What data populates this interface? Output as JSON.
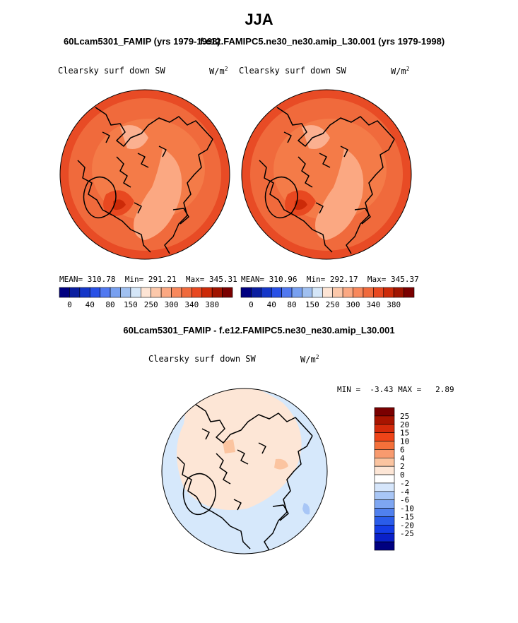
{
  "figure": {
    "title": "JJA",
    "panel_left_title": "60Lcam5301_FAMIP (yrs 1979-1998)",
    "panel_right_title": "f.e12.FAMIPC5.ne30_ne30.amip_L30.001 (yrs 1979-1998)",
    "diff_title": "60Lcam5301_FAMIP - f.e12.FAMIPC5.ne30_ne30.amip_L30.001"
  },
  "panels": [
    {
      "variable": "Clearsky surf down SW",
      "units_base": "W/m",
      "units_exp": "2",
      "mean_label": "MEAN=",
      "mean": "310.78",
      "min_label": "Min=",
      "min": "291.21",
      "max_label": "Max=",
      "max": "345.31"
    },
    {
      "variable": "Clearsky surf down SW",
      "units_base": "W/m",
      "units_exp": "2",
      "mean_label": "MEAN=",
      "mean": "310.96",
      "min_label": "Min=",
      "min": "292.17",
      "max_label": "Max=",
      "max": "345.37"
    }
  ],
  "diff_panel": {
    "variable": "Clearsky surf down SW",
    "units_base": "W/m",
    "units_exp": "2",
    "min_label": "MIN =",
    "min": "-3.43",
    "max_label": "MAX =",
    "max": "2.89"
  },
  "colorbar_main": {
    "colors": [
      "#000080",
      "#0a1ea0",
      "#1436c8",
      "#2850e6",
      "#5078f0",
      "#78a0f0",
      "#a0c0f0",
      "#d4e6f8",
      "#fde4d4",
      "#fcc8aa",
      "#fba882",
      "#f8885c",
      "#f06a3c",
      "#e84820",
      "#cc2a08",
      "#a01400",
      "#7a0000"
    ],
    "ticks": [
      "0",
      "40",
      "80",
      "150",
      "250",
      "300",
      "340",
      "380"
    ]
  },
  "colorbar_diff": {
    "colors": [
      "#7a0000",
      "#a81400",
      "#d42a0a",
      "#ee4418",
      "#f4703a",
      "#f89a6e",
      "#fbc4a0",
      "#fde6d6",
      "#ffffff",
      "#d6e6fb",
      "#a8c6f6",
      "#7ea6f2",
      "#5080ee",
      "#2a5cea",
      "#143ce6",
      "#0a20c8",
      "#000080"
    ],
    "labels": [
      "25",
      "20",
      "15",
      "10",
      "6",
      "4",
      "2",
      "0",
      "-2",
      "-4",
      "-6",
      "-10",
      "-15",
      "-20",
      "-25"
    ]
  }
}
